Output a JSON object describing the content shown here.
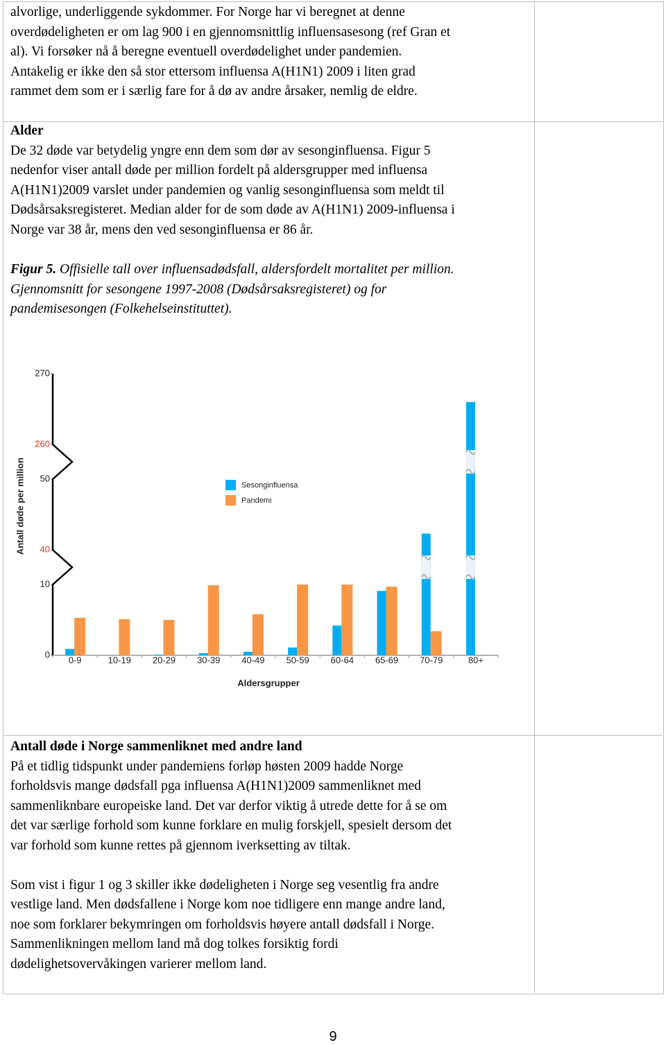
{
  "paragraph_1": {
    "lines": [
      "alvorlige, underliggende sykdommer. For Norge har vi beregnet at denne",
      "overdødeligheten er om lag 900 i en gjennomsnittlig influensasesong (ref Gran et",
      "al). Vi forsøker nå å beregne eventuell overdødelighet under pandemien.",
      "Antakelig er ikke den så stor ettersom influensa A(H1N1) 2009 i liten grad",
      "rammet dem som er i særlig fare for å dø av andre årsaker, nemlig de eldre."
    ]
  },
  "alder": {
    "heading": "Alder",
    "lines": [
      "De 32 døde var betydelig yngre enn dem som dør av sesonginfluensa. Figur 5",
      "nedenfor viser antall døde per million fordelt på aldersgrupper med influensa",
      "A(H1N1)2009 varslet under pandemien og vanlig sesonginfluensa som meldt til",
      "Dødsårsaksregisteret. Median alder for de som døde av A(H1N1) 2009-influensa i",
      "Norge var 38 år, mens den ved sesonginfluensa er 86 år."
    ]
  },
  "figure_caption": {
    "label": "Figur 5.",
    "lines": [
      "Offisielle tall over influensadødsfall, aldersfordelt mortalitet per million.",
      "Gjennomsnitt for sesongene 1997-2008 (Dødsårsaksregisteret) og for",
      "pandemisesongen (Folkehelseinstituttet)."
    ]
  },
  "chart_data": {
    "type": "bar",
    "x_label": "Aldersgrupper",
    "y_label": "Antall døde per million",
    "categories": [
      "0-9",
      "10-19",
      "20-29",
      "30-39",
      "40-49",
      "50-59",
      "60-64",
      "65-69",
      "70-79",
      "80+"
    ],
    "series": [
      {
        "name": "Sesonginfluensa",
        "color": "#00adef",
        "values": [
          0.9,
          0,
          0.1,
          0.3,
          0.5,
          1.1,
          4.2,
          9.1,
          42.3,
          266
        ]
      },
      {
        "name": "Pandemi",
        "color": "#f79646",
        "values": [
          5.3,
          5.1,
          5.0,
          9.9,
          5.8,
          10.0,
          10.0,
          9.7,
          3.4,
          null
        ]
      }
    ],
    "ylim": [
      0,
      270
    ],
    "yticks": [
      0,
      10,
      40,
      50,
      260,
      270
    ],
    "axis_breaks": [
      [
        10,
        40
      ],
      [
        50,
        260
      ]
    ]
  },
  "section_3": {
    "heading": "Antall døde i Norge sammenliknet med andre land",
    "paragraphs": [
      [
        "På et tidlig tidspunkt under pandemiens forløp høsten 2009 hadde Norge",
        "forholdsvis mange dødsfall pga influensa A(H1N1)2009 sammenliknet med",
        "sammenliknbare europeiske land. Det var derfor viktig å utrede dette for å se om",
        "det var særlige forhold som kunne forklare en mulig forskjell, spesielt dersom det",
        "var forhold som kunne rettes på gjennom iverksetting av tiltak."
      ],
      [
        "Som vist i figur 1 og 3 skiller ikke dødeligheten i Norge seg vesentlig fra andre",
        "vestlige land. Men dødsfallene i Norge kom noe tidligere enn mange andre land,",
        "noe som forklarer bekymringen om forholdsvis høyere antall dødsfall i Norge.",
        "Sammenlikningen mellom land må dog tolkes forsiktig fordi",
        "dødelighetsovervåkingen varierer mellom land."
      ]
    ]
  },
  "page_number": "9"
}
